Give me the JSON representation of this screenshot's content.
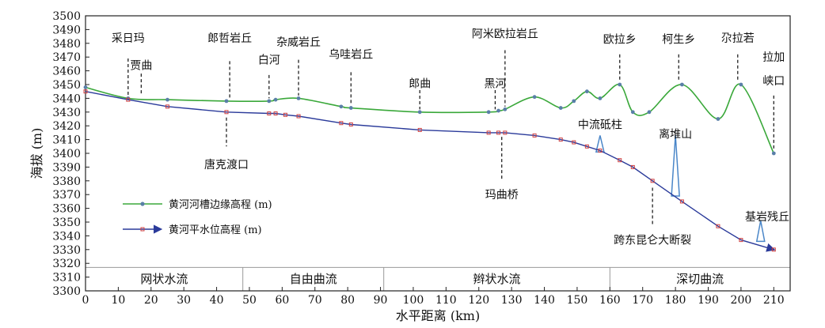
{
  "chart_data": {
    "type": "line",
    "xlabel": "水平距离 (km)",
    "ylabel": "海拔 (m)",
    "xlim": [
      0,
      215
    ],
    "ylim": [
      3300,
      3500
    ],
    "x_ticks": [
      0,
      10,
      20,
      30,
      40,
      50,
      60,
      70,
      80,
      90,
      100,
      110,
      120,
      130,
      140,
      150,
      160,
      170,
      180,
      190,
      200,
      210
    ],
    "y_ticks": [
      3300,
      3310,
      3320,
      3330,
      3340,
      3350,
      3360,
      3370,
      3380,
      3390,
      3400,
      3410,
      3420,
      3430,
      3440,
      3450,
      3460,
      3470,
      3480,
      3490,
      3500
    ],
    "y_plot_min": 3317,
    "series": [
      {
        "name": "黄河河槽边缘高程 (m)",
        "color": "#3aa83a",
        "marker_color": "#5a7fa8",
        "points": [
          [
            0,
            3448
          ],
          [
            13,
            3440
          ],
          [
            25,
            3439
          ],
          [
            43,
            3438
          ],
          [
            56,
            3438
          ],
          [
            58,
            3439
          ],
          [
            65,
            3440
          ],
          [
            78,
            3434
          ],
          [
            81,
            3433
          ],
          [
            102,
            3430
          ],
          [
            123,
            3430
          ],
          [
            126,
            3431
          ],
          [
            128,
            3432
          ],
          [
            137,
            3441
          ],
          [
            145,
            3433
          ],
          [
            149,
            3438
          ],
          [
            153,
            3445
          ],
          [
            157,
            3440
          ],
          [
            163,
            3450
          ],
          [
            167,
            3430
          ],
          [
            172,
            3430
          ],
          [
            182,
            3450
          ],
          [
            193,
            3425
          ],
          [
            200,
            3450
          ],
          [
            210,
            3400
          ]
        ]
      },
      {
        "name": "黄河平水位高程 (m)",
        "color": "#2a3a9a",
        "marker_color": "#d04040",
        "points": [
          [
            0,
            3445
          ],
          [
            13,
            3439
          ],
          [
            25,
            3434
          ],
          [
            43,
            3430
          ],
          [
            56,
            3429
          ],
          [
            58,
            3429
          ],
          [
            61,
            3428
          ],
          [
            65,
            3427
          ],
          [
            78,
            3422
          ],
          [
            81,
            3421
          ],
          [
            102,
            3417
          ],
          [
            123,
            3415
          ],
          [
            126,
            3415
          ],
          [
            128,
            3415
          ],
          [
            137,
            3413
          ],
          [
            145,
            3410
          ],
          [
            149,
            3408
          ],
          [
            153,
            3405
          ],
          [
            157,
            3402
          ],
          [
            163,
            3395
          ],
          [
            167,
            3390
          ],
          [
            173,
            3380
          ],
          [
            182,
            3365
          ],
          [
            193,
            3347
          ],
          [
            200,
            3337
          ],
          [
            210,
            3330
          ]
        ]
      }
    ],
    "zones": [
      {
        "label": "网状水流",
        "start": 0,
        "end": 48
      },
      {
        "label": "自由曲流",
        "start": 48,
        "end": 91
      },
      {
        "label": "辫状水流",
        "start": 91,
        "end": 160
      },
      {
        "label": "深切曲流",
        "start": 160,
        "end": 215
      }
    ],
    "top_annotations": [
      {
        "label": "采日玛",
        "x": 13,
        "text_y": 3484,
        "y_top": 3469,
        "y_bot": 3441
      },
      {
        "label": "贾曲",
        "x": 17,
        "text_y": 3464,
        "y_top": 3458,
        "y_bot": 3443
      },
      {
        "label": "郎哲岩丘",
        "x": 44,
        "text_y": 3484,
        "y_top": 3467,
        "y_bot": 3440
      },
      {
        "label": "白河",
        "x": 56,
        "text_y": 3468,
        "y_top": 3457,
        "y_bot": 3440
      },
      {
        "label": "杂威岩丘",
        "x": 65,
        "text_y": 3481,
        "y_top": 3468,
        "y_bot": 3442
      },
      {
        "label": "乌哇岩丘",
        "x": 81,
        "text_y": 3472,
        "y_top": 3459,
        "y_bot": 3435
      },
      {
        "label": "郎曲",
        "x": 102,
        "text_y": 3451,
        "y_top": 3446,
        "y_bot": 3432
      },
      {
        "label": "黑河",
        "x": 125,
        "text_y": 3451,
        "y_top": 3446,
        "y_bot": 3432
      },
      {
        "label": "阿米欧拉岩丘",
        "x": 128,
        "text_y": 3487,
        "y_top": 3475,
        "y_bot": 3434
      },
      {
        "label": "欧拉乡",
        "x": 163,
        "text_y": 3483,
        "y_top": 3472,
        "y_bot": 3452
      },
      {
        "label": "柯生乡",
        "x": 181,
        "text_y": 3483,
        "y_top": 3472,
        "y_bot": 3452
      },
      {
        "label": "尕拉若",
        "x": 199,
        "text_y": 3484,
        "y_top": 3472,
        "y_bot": 3452
      },
      {
        "label": "拉加",
        "x": 210,
        "text_y": 3470
      },
      {
        "label": "峡口",
        "x": 210,
        "text_y": 3453,
        "y_top": 3442,
        "y_bot": 3402
      }
    ],
    "bottom_annotations": [
      {
        "label": "唐克渡口",
        "x": 43,
        "text_y": 3392,
        "y_top": 3426,
        "y_bot": 3405
      },
      {
        "label": "玛曲桥",
        "x": 127,
        "text_y": 3370,
        "y_top": 3412,
        "y_bot": 3380
      },
      {
        "label": "跨东昆仑大断裂",
        "x": 173,
        "text_y": 3337,
        "y_top": 3375,
        "y_bot": 3348
      }
    ],
    "feature_annotations": [
      {
        "label": "中流砥柱",
        "text_x": 157,
        "text_y": 3421,
        "marker_x": 157,
        "marker_height": 12,
        "marker_base": 3401
      },
      {
        "label": "离堆山",
        "text_x": 180,
        "text_y": 3414,
        "marker_x": 180,
        "marker_height": 44,
        "marker_base": 3369
      },
      {
        "label": "基岩残丘",
        "text_x": 208,
        "text_y": 3354,
        "marker_x": 206,
        "marker_height": 15,
        "marker_base": 3336
      }
    ]
  }
}
